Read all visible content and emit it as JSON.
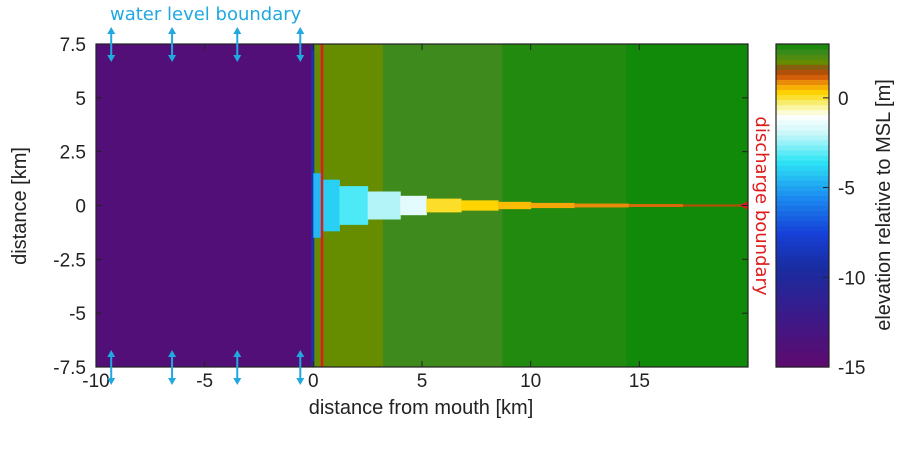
{
  "chart_data": {
    "type": "heatmap",
    "xlabel": "distance from mouth [km]",
    "ylabel": "distance [km]",
    "colorbar_label": "elevation relative to MSL [m]",
    "xlim": [
      -10,
      20
    ],
    "ylim": [
      -7.5,
      7.5
    ],
    "x_ticks": [
      -10,
      -5,
      0,
      5,
      10,
      15
    ],
    "y_ticks": [
      7.5,
      5,
      2.5,
      0,
      -2.5,
      -5,
      -7.5
    ],
    "x_tick_labels": [
      "-10",
      "-5",
      "0",
      "5",
      "10",
      "15"
    ],
    "y_tick_labels": [
      "7.5",
      "5",
      "2.5",
      "0",
      "-2.5",
      "-5",
      "-7.5"
    ],
    "colorbar_range": [
      -15,
      3
    ],
    "colorbar_ticks": [
      0,
      -5,
      -10,
      -15
    ],
    "colorbar_tick_labels": [
      "0",
      "-5",
      "-10",
      "-15"
    ],
    "annotations": {
      "water_level_boundary": "water level boundary",
      "discharge_boundary": "discharge boundary"
    },
    "sea": {
      "x_range": [
        -10,
        0
      ],
      "elevation": -14
    },
    "land_zones": [
      {
        "x_range": [
          0,
          3.2
        ],
        "elevation": 2.0
      },
      {
        "x_range": [
          3.2,
          8.7
        ],
        "elevation": 2.5
      },
      {
        "x_range": [
          8.7,
          14.4
        ],
        "elevation": 2.8
      },
      {
        "x_range": [
          14.4,
          20
        ],
        "elevation": 3.0
      }
    ],
    "channel_segments": [
      {
        "x_range": [
          0,
          0.35
        ],
        "half_width": 1.5,
        "elevation": -4.5
      },
      {
        "x_range": [
          0.35,
          1.2
        ],
        "half_width": 1.2,
        "elevation": -4.0
      },
      {
        "x_range": [
          1.2,
          2.5
        ],
        "half_width": 0.9,
        "elevation": -3.2
      },
      {
        "x_range": [
          2.5,
          4.0
        ],
        "half_width": 0.65,
        "elevation": -2.2
      },
      {
        "x_range": [
          4.0,
          5.2
        ],
        "half_width": 0.45,
        "elevation": -1.5
      },
      {
        "x_range": [
          5.2,
          6.8
        ],
        "half_width": 0.32,
        "elevation": 0.1
      },
      {
        "x_range": [
          6.8,
          8.5
        ],
        "half_width": 0.24,
        "elevation": 0.3
      },
      {
        "x_range": [
          8.5,
          10.0
        ],
        "half_width": 0.17,
        "elevation": 0.5
      },
      {
        "x_range": [
          10.0,
          12.0
        ],
        "half_width": 0.12,
        "elevation": 0.7
      },
      {
        "x_range": [
          12.0,
          14.5
        ],
        "half_width": 0.09,
        "elevation": 0.9
      },
      {
        "x_range": [
          14.5,
          17.0
        ],
        "half_width": 0.07,
        "elevation": 1.1
      },
      {
        "x_range": [
          17.0,
          20.0
        ],
        "half_width": 0.05,
        "elevation": 1.4
      }
    ],
    "water_level_boundary_x": [
      -9.3,
      -6.5,
      -3.5,
      -0.6
    ],
    "discharge_boundary_x": 0.4
  }
}
